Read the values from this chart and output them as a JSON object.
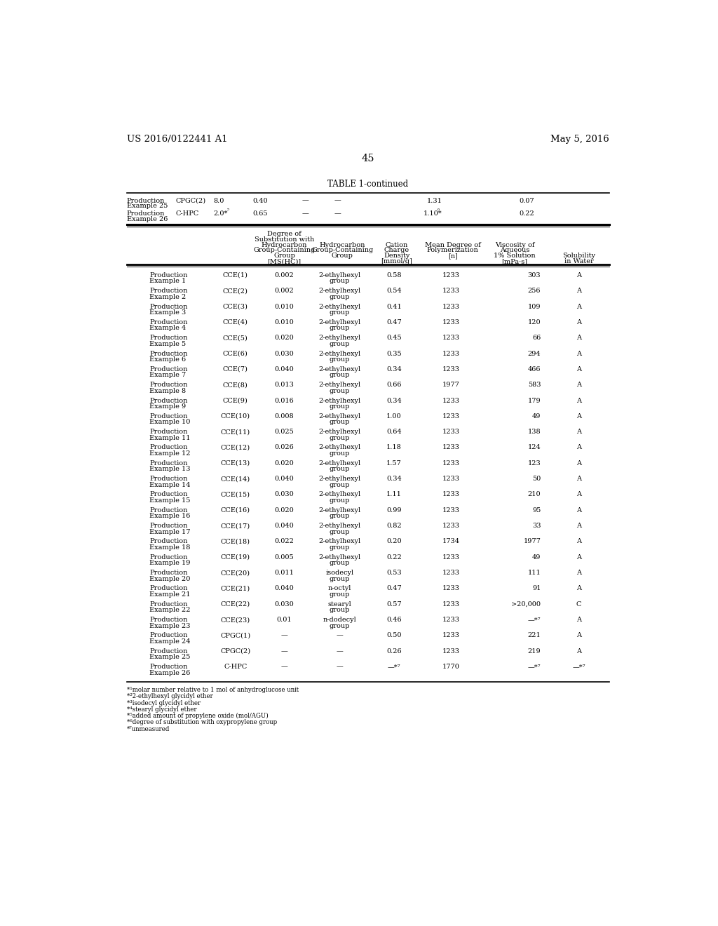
{
  "patent_left": "US 2016/0122441 A1",
  "patent_right": "May 5, 2016",
  "page_num": "45",
  "table_title": "TABLE 1-continued",
  "bg_color": "#ffffff",
  "text_color": "#000000",
  "font_size": 7.0,
  "rows": [
    [
      "Production\nExample 1",
      "CCE(1)",
      "0.002",
      "2-ethylhexyl\ngroup",
      "0.58",
      "1233",
      "303",
      "A"
    ],
    [
      "Production\nExample 2",
      "CCE(2)",
      "0.002",
      "2-ethylhexyl\ngroup",
      "0.54",
      "1233",
      "256",
      "A"
    ],
    [
      "Production\nExample 3",
      "CCE(3)",
      "0.010",
      "2-ethylhexyl\ngroup",
      "0.41",
      "1233",
      "109",
      "A"
    ],
    [
      "Production\nExample 4",
      "CCE(4)",
      "0.010",
      "2-ethylhexyl\ngroup",
      "0.47",
      "1233",
      "120",
      "A"
    ],
    [
      "Production\nExample 5",
      "CCE(5)",
      "0.020",
      "2-ethylhexyl\ngroup",
      "0.45",
      "1233",
      "66",
      "A"
    ],
    [
      "Production\nExample 6",
      "CCE(6)",
      "0.030",
      "2-ethylhexyl\ngroup",
      "0.35",
      "1233",
      "294",
      "A"
    ],
    [
      "Production\nExample 7",
      "CCE(7)",
      "0.040",
      "2-ethylhexyl\ngroup",
      "0.34",
      "1233",
      "466",
      "A"
    ],
    [
      "Production\nExample 8",
      "CCE(8)",
      "0.013",
      "2-ethylhexyl\ngroup",
      "0.66",
      "1977",
      "583",
      "A"
    ],
    [
      "Production\nExample 9",
      "CCE(9)",
      "0.016",
      "2-ethylhexyl\ngroup",
      "0.34",
      "1233",
      "179",
      "A"
    ],
    [
      "Production\nExample 10",
      "CCE(10)",
      "0.008",
      "2-ethylhexyl\ngroup",
      "1.00",
      "1233",
      "49",
      "A"
    ],
    [
      "Production\nExample 11",
      "CCE(11)",
      "0.025",
      "2-ethylhexyl\ngroup",
      "0.64",
      "1233",
      "138",
      "A"
    ],
    [
      "Production\nExample 12",
      "CCE(12)",
      "0.026",
      "2-ethylhexyl\ngroup",
      "1.18",
      "1233",
      "124",
      "A"
    ],
    [
      "Production\nExample 13",
      "CCE(13)",
      "0.020",
      "2-ethylhexyl\ngroup",
      "1.57",
      "1233",
      "123",
      "A"
    ],
    [
      "Production\nExample 14",
      "CCE(14)",
      "0.040",
      "2-ethylhexyl\ngroup",
      "0.34",
      "1233",
      "50",
      "A"
    ],
    [
      "Production\nExample 15",
      "CCE(15)",
      "0.030",
      "2-ethylhexyl\ngroup",
      "1.11",
      "1233",
      "210",
      "A"
    ],
    [
      "Production\nExample 16",
      "CCE(16)",
      "0.020",
      "2-ethylhexyl\ngroup",
      "0.99",
      "1233",
      "95",
      "A"
    ],
    [
      "Production\nExample 17",
      "CCE(17)",
      "0.040",
      "2-ethylhexyl\ngroup",
      "0.82",
      "1233",
      "33",
      "A"
    ],
    [
      "Production\nExample 18",
      "CCE(18)",
      "0.022",
      "2-ethylhexyl\ngroup",
      "0.20",
      "1734",
      "1977",
      "A"
    ],
    [
      "Production\nExample 19",
      "CCE(19)",
      "0.005",
      "2-ethylhexyl\ngroup",
      "0.22",
      "1233",
      "49",
      "A"
    ],
    [
      "Production\nExample 20",
      "CCE(20)",
      "0.011",
      "isodecyl\ngroup",
      "0.53",
      "1233",
      "111",
      "A"
    ],
    [
      "Production\nExample 21",
      "CCE(21)",
      "0.040",
      "n-octyl\ngroup",
      "0.47",
      "1233",
      "91",
      "A"
    ],
    [
      "Production\nExample 22",
      "CCE(22)",
      "0.030",
      "stearyl\ngroup",
      "0.57",
      "1233",
      ">20,000",
      "C"
    ],
    [
      "Production\nExample 23",
      "CCE(23)",
      "0.01",
      "n-dodecyl\ngroup",
      "0.46",
      "1233",
      "—*⁷",
      "A"
    ],
    [
      "Production\nExample 24",
      "CPGC(1)",
      "—",
      "—",
      "0.50",
      "1233",
      "221",
      "A"
    ],
    [
      "Production\nExample 25",
      "CPGC(2)",
      "—",
      "—",
      "0.26",
      "1233",
      "219",
      "A"
    ],
    [
      "Production\nExample 26",
      "C-HPC",
      "—",
      "—",
      "—*⁷",
      "1770",
      "—*⁷",
      "—*⁷"
    ]
  ],
  "footnotes": [
    "*¹molar number relative to 1 mol of anhydroglucose unit",
    "*²2-ethylhexyl glycidyl ether",
    "*³isodecyl glycidyl ether",
    "*⁴stearyl glycidyl ether",
    "*⁵added amount of propylene oxide (mol/AGU)",
    "*⁶degree of substitution with oxypropylene group",
    "*⁷unmeasured"
  ]
}
